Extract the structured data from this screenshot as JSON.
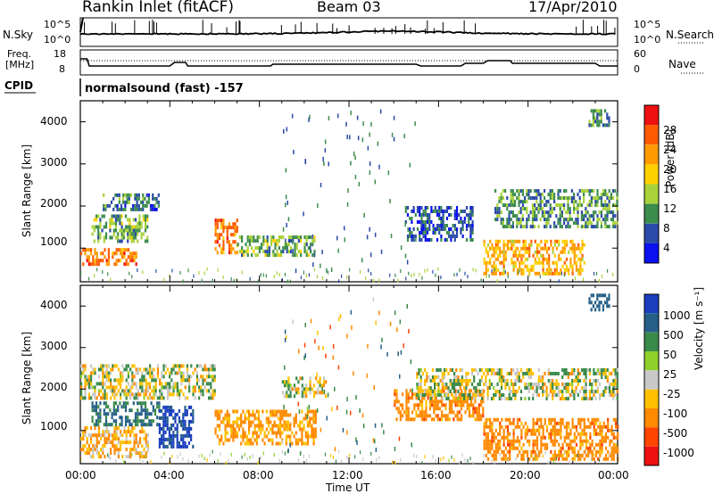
{
  "header": {
    "title": "Rankin Inlet (fitACF)",
    "beam": "Beam 03",
    "date": "17/Apr/2010"
  },
  "panels": {
    "nsky": {
      "label": "N.Sky",
      "ticks_left": [
        "10^5",
        "10^0"
      ],
      "ticks_right": [
        "10^5",
        "10^0"
      ],
      "right_label": "N.Search"
    },
    "freq": {
      "label_line1": "Freq.",
      "label_line2": "[MHz]",
      "ticks_left": [
        "18",
        "8"
      ],
      "ticks_right": [
        "60",
        "0"
      ],
      "right_label": "Nave"
    },
    "cpid": {
      "label": "CPID",
      "text": "normalsound (fast) -157"
    }
  },
  "axes": {
    "ylabel": "Slant Range [km]",
    "yticks": [
      "4000",
      "3000",
      "2000",
      "1000"
    ],
    "xticks": [
      "00:00",
      "04:00",
      "08:00",
      "12:00",
      "16:00",
      "20:00",
      "00:00"
    ],
    "xlabel": "Time UT"
  },
  "colorbars": {
    "power": {
      "label": "Power [dB]",
      "ticks": [
        "28",
        "24",
        "20",
        "16",
        "12",
        "8",
        "4"
      ],
      "colors": [
        "#ee1111",
        "#ff5a00",
        "#ff9a00",
        "#ffd000",
        "#a9d23a",
        "#3c8c4e",
        "#2a4aa8",
        "#0a10f0"
      ]
    },
    "velocity": {
      "label": "Velocity [m s⁻¹]",
      "ticks": [
        "1000",
        "500",
        "50",
        "25",
        "-25",
        "-100",
        "-500",
        "-1000"
      ],
      "colors": [
        "#1a3fbe",
        "#255f88",
        "#3a8a4a",
        "#8fd02a",
        "#c8c8c8",
        "#ffc000",
        "#ff8a00",
        "#ff4400",
        "#ee1111"
      ]
    }
  },
  "chart_data": [
    {
      "type": "heatmap",
      "title": "Power",
      "xlabel": "Time UT",
      "ylabel": "Slant Range [km]",
      "xlim": [
        "00:00",
        "24:00"
      ],
      "ylim": [
        200,
        4500
      ],
      "colorbar_label": "Power [dB]",
      "colorbar_ticks": [
        28,
        24,
        20,
        16,
        12,
        8,
        4
      ],
      "regions": [
        {
          "t_start": 0.0,
          "t_end": 2.5,
          "range_min": 600,
          "range_max": 1000,
          "value": 24
        },
        {
          "t_start": 0.5,
          "t_end": 3.0,
          "range_min": 1200,
          "range_max": 1800,
          "value": 12
        },
        {
          "t_start": 1.0,
          "t_end": 3.5,
          "range_min": 1900,
          "range_max": 2300,
          "value": 8
        },
        {
          "t_start": 6.0,
          "t_end": 7.0,
          "range_min": 900,
          "range_max": 1700,
          "value": 24
        },
        {
          "t_start": 7.0,
          "t_end": 10.5,
          "range_min": 800,
          "range_max": 1300,
          "value": 12
        },
        {
          "t_start": 14.5,
          "t_end": 17.5,
          "range_min": 1200,
          "range_max": 2000,
          "value": 6
        },
        {
          "t_start": 18.0,
          "t_end": 22.5,
          "range_min": 400,
          "range_max": 1200,
          "value": 20
        },
        {
          "t_start": 18.5,
          "t_end": 24.0,
          "range_min": 1500,
          "range_max": 2400,
          "value": 10
        },
        {
          "t_start": 22.7,
          "t_end": 23.6,
          "range_min": 3900,
          "range_max": 4300,
          "value": 10
        }
      ]
    },
    {
      "type": "heatmap",
      "title": "Velocity",
      "xlabel": "Time UT",
      "ylabel": "Slant Range [km]",
      "xlim": [
        "00:00",
        "24:00"
      ],
      "ylim": [
        200,
        4500
      ],
      "colorbar_label": "Velocity [m s⁻¹]",
      "colorbar_ticks": [
        1000,
        500,
        50,
        25,
        -25,
        -100,
        -500,
        -1000
      ],
      "regions": [
        {
          "t_start": 0.0,
          "t_end": 3.0,
          "range_min": 400,
          "range_max": 1100,
          "value": -100
        },
        {
          "t_start": 0.5,
          "t_end": 3.5,
          "range_min": 1100,
          "range_max": 1700,
          "value": 300
        },
        {
          "t_start": 3.5,
          "t_end": 5.0,
          "range_min": 600,
          "range_max": 1600,
          "value": 800
        },
        {
          "t_start": 6.0,
          "t_end": 10.5,
          "range_min": 700,
          "range_max": 1500,
          "value": -150
        },
        {
          "t_start": 0.0,
          "t_end": 6.0,
          "range_min": 1800,
          "range_max": 2600,
          "value": 0
        },
        {
          "t_start": 9.0,
          "t_end": 11.0,
          "range_min": 1800,
          "range_max": 2300,
          "value": 0
        },
        {
          "t_start": 14.0,
          "t_end": 18.0,
          "range_min": 1300,
          "range_max": 2000,
          "value": -200
        },
        {
          "t_start": 15.0,
          "t_end": 24.0,
          "range_min": 1800,
          "range_max": 2500,
          "value": 0
        },
        {
          "t_start": 18.0,
          "t_end": 24.0,
          "range_min": 300,
          "range_max": 1300,
          "value": -200
        },
        {
          "t_start": 22.7,
          "t_end": 23.6,
          "range_min": 3900,
          "range_max": 4300,
          "value": 500
        }
      ]
    }
  ]
}
